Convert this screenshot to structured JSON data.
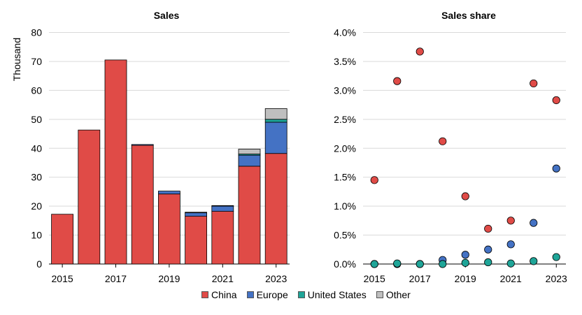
{
  "chart_data": [
    {
      "type": "bar",
      "stacked": true,
      "title": "Sales",
      "xlabel": "",
      "ylabel": "Thousand",
      "categories": [
        "2015",
        "2016",
        "2017",
        "2018",
        "2019",
        "2020",
        "2021",
        "2022",
        "2023"
      ],
      "x_tick_labels": [
        "2015",
        "2017",
        "2019",
        "2021",
        "2023"
      ],
      "y_ticks": [
        "0",
        "10",
        "20",
        "30",
        "40",
        "50",
        "60",
        "70",
        "80"
      ],
      "ylim": [
        0,
        80
      ],
      "grid": true,
      "series": [
        {
          "name": "China",
          "color": "#e04b47",
          "values": [
            17.2,
            46.3,
            70.5,
            41.0,
            24.2,
            16.5,
            18.2,
            33.8,
            38.2
          ]
        },
        {
          "name": "Europe",
          "color": "#4472c4",
          "values": [
            0.0,
            0.0,
            0.0,
            0.3,
            1.0,
            1.2,
            1.8,
            3.8,
            10.8
          ]
        },
        {
          "name": "United States",
          "color": "#1fa598",
          "values": [
            0.0,
            0.0,
            0.0,
            0.0,
            0.0,
            0.0,
            0.0,
            0.4,
            1.0
          ]
        },
        {
          "name": "Other",
          "color": "#bfbfbf",
          "values": [
            0.0,
            0.0,
            0.0,
            0.0,
            0.0,
            0.2,
            0.2,
            1.7,
            3.7
          ]
        }
      ]
    },
    {
      "type": "scatter",
      "title": "Sales share",
      "xlabel": "",
      "ylabel": "",
      "categories": [
        "2015",
        "2016",
        "2017",
        "2018",
        "2019",
        "2020",
        "2021",
        "2022",
        "2023"
      ],
      "x_tick_labels": [
        "2015",
        "2017",
        "2019",
        "2021",
        "2023"
      ],
      "y_ticks": [
        "0.0%",
        "0.5%",
        "1.0%",
        "1.5%",
        "2.0%",
        "2.5%",
        "3.0%",
        "3.5%",
        "4.0%"
      ],
      "ylim": [
        0,
        4.0
      ],
      "grid": true,
      "series": [
        {
          "name": "China",
          "color": "#e04b47",
          "values": [
            1.45,
            3.16,
            3.67,
            2.12,
            1.17,
            0.61,
            0.75,
            3.12,
            2.83
          ]
        },
        {
          "name": "Europe",
          "color": "#4472c4",
          "values": [
            0.0,
            0.0,
            0.0,
            0.07,
            0.16,
            0.25,
            0.34,
            0.71,
            1.65
          ]
        },
        {
          "name": "United States",
          "color": "#1fa598",
          "values": [
            0.0,
            0.01,
            0.0,
            0.0,
            0.02,
            0.03,
            0.01,
            0.05,
            0.12
          ]
        }
      ]
    }
  ],
  "legend": [
    {
      "label": "China",
      "color": "#e04b47"
    },
    {
      "label": "Europe",
      "color": "#4472c4"
    },
    {
      "label": "United States",
      "color": "#1fa598"
    },
    {
      "label": "Other",
      "color": "#bfbfbf"
    }
  ]
}
